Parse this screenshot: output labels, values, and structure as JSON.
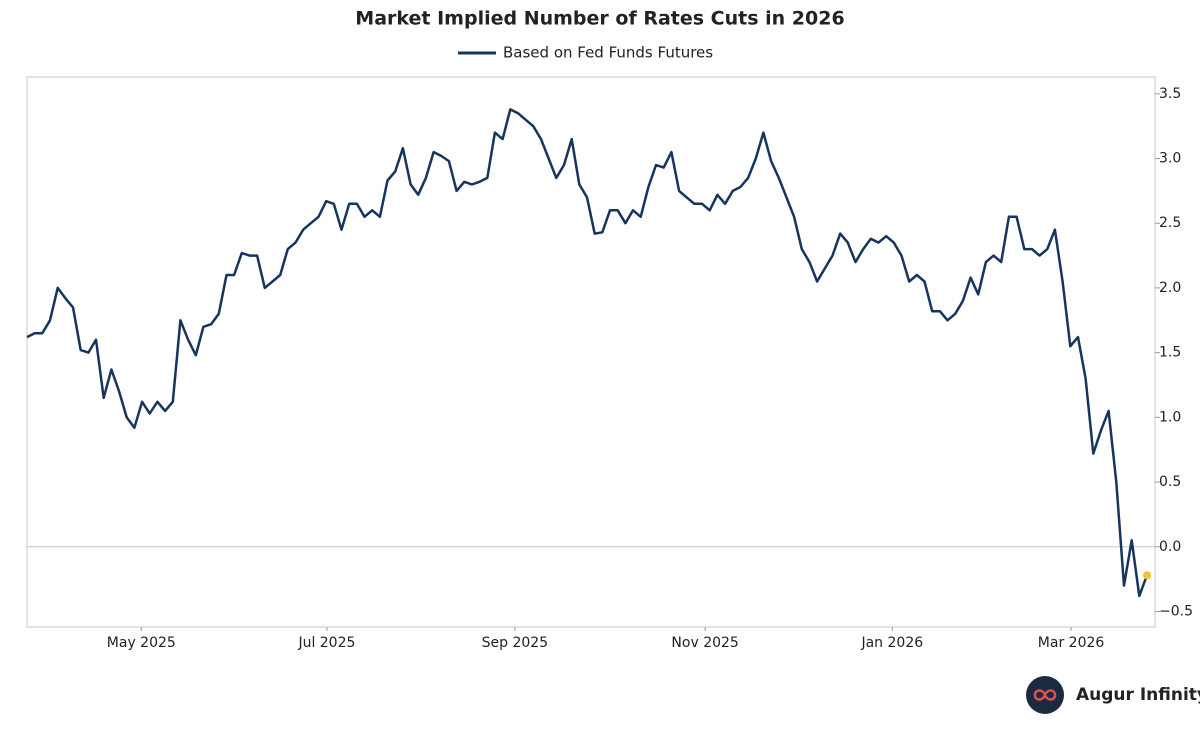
{
  "chart_data": {
    "type": "line",
    "title": "Market Implied Number of Rates Cuts in 2026",
    "watermark": "Augur Infinity",
    "series": [
      {
        "name": "Based on Fed Funds Futures",
        "color": "#17345f",
        "last_point_color": "#f2c230",
        "values": [
          1.62,
          1.65,
          1.65,
          1.75,
          2.0,
          1.92,
          1.85,
          1.52,
          1.5,
          1.6,
          1.15,
          1.37,
          1.2,
          1.0,
          0.92,
          1.12,
          1.03,
          1.12,
          1.05,
          1.12,
          1.75,
          1.6,
          1.48,
          1.7,
          1.72,
          1.8,
          2.1,
          2.1,
          2.27,
          2.25,
          2.25,
          2.0,
          2.05,
          2.1,
          2.3,
          2.35,
          2.45,
          2.5,
          2.55,
          2.67,
          2.65,
          2.45,
          2.65,
          2.65,
          2.55,
          2.6,
          2.55,
          2.83,
          2.9,
          3.08,
          2.8,
          2.72,
          2.85,
          3.05,
          3.02,
          2.98,
          2.75,
          2.82,
          2.8,
          2.82,
          2.85,
          3.2,
          3.15,
          3.38,
          3.35,
          3.3,
          3.25,
          3.15,
          3.0,
          2.85,
          2.95,
          3.15,
          2.8,
          2.7,
          2.42,
          2.43,
          2.6,
          2.6,
          2.5,
          2.6,
          2.55,
          2.78,
          2.95,
          2.93,
          3.05,
          2.75,
          2.7,
          2.65,
          2.65,
          2.6,
          2.72,
          2.65,
          2.75,
          2.78,
          2.85,
          3.0,
          3.2,
          2.98,
          2.85,
          2.7,
          2.55,
          2.3,
          2.2,
          2.05,
          2.15,
          2.25,
          2.42,
          2.35,
          2.2,
          2.3,
          2.38,
          2.35,
          2.4,
          2.35,
          2.25,
          2.05,
          2.1,
          2.05,
          1.82,
          1.82,
          1.75,
          1.8,
          1.9,
          2.08,
          1.95,
          2.2,
          2.25,
          2.2,
          2.55,
          2.55,
          2.3,
          2.3,
          2.25,
          2.3,
          2.45,
          2.05,
          1.55,
          1.62,
          1.3,
          0.72,
          0.9,
          1.05,
          0.5,
          -0.3,
          0.05,
          -0.38,
          -0.22
        ]
      }
    ],
    "xlim": [
      0,
      146
    ],
    "xticks": [
      {
        "value": 14.9,
        "label": "May 2025"
      },
      {
        "value": 39.1,
        "label": "Jul 2025"
      },
      {
        "value": 63.6,
        "label": "Sep 2025"
      },
      {
        "value": 88.4,
        "label": "Nov 2025"
      },
      {
        "value": 112.8,
        "label": "Jan 2026"
      },
      {
        "value": 136.1,
        "label": "Mar 2026"
      }
    ],
    "ylim": [
      -0.62,
      3.63
    ],
    "yticks": [
      {
        "value": 3.5,
        "label": "3.5"
      },
      {
        "value": 3.0,
        "label": "3.0"
      },
      {
        "value": 2.5,
        "label": "2.5"
      },
      {
        "value": 2.0,
        "label": "2.0"
      },
      {
        "value": 1.5,
        "label": "1.5"
      },
      {
        "value": 1.0,
        "label": "1.0"
      },
      {
        "value": 0.5,
        "label": "0.5"
      },
      {
        "value": 0.0,
        "label": "0.0"
      },
      {
        "value": -0.5,
        "label": "−0.5"
      }
    ],
    "y_axis_side": "right",
    "zero_line": true
  }
}
